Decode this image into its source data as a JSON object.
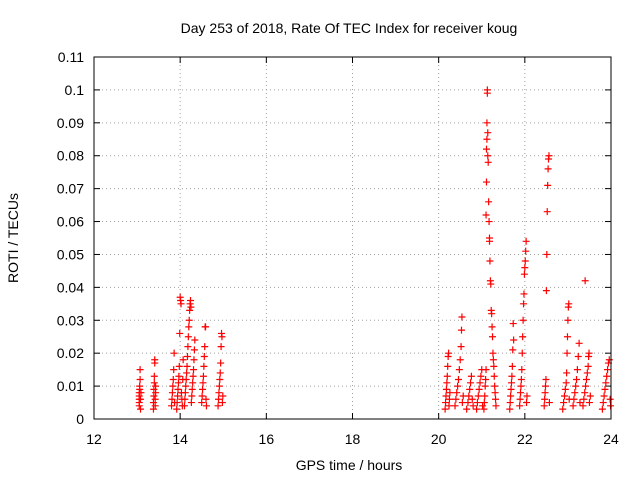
{
  "chart_data": {
    "type": "scatter",
    "title": "Day 253 of 2018, Rate Of TEC Index for receiver koug",
    "xlabel": "GPS time / hours",
    "ylabel": "ROTI / TECUs",
    "xlim": [
      12,
      24
    ],
    "ylim": [
      0,
      0.11
    ],
    "xticks": [
      12,
      14,
      16,
      18,
      20,
      22,
      24
    ],
    "xtick_labels": [
      "12",
      "14",
      "16",
      "18",
      "20",
      "22",
      "24"
    ],
    "yticks": [
      0,
      0.01,
      0.02,
      0.03,
      0.04,
      0.05,
      0.06,
      0.07,
      0.08,
      0.09,
      0.1,
      0.11
    ],
    "ytick_labels": [
      "0",
      "0.01",
      "0.02",
      "0.03",
      "0.04",
      "0.05",
      "0.06",
      "0.07",
      "0.08",
      "0.09",
      "0.1",
      "0.11"
    ],
    "grid": true,
    "marker": "+",
    "color": "#ff0000",
    "series": [
      {
        "name": "ROTI",
        "points": [
          [
            13.05,
            0.004
          ],
          [
            13.05,
            0.005
          ],
          [
            13.05,
            0.006
          ],
          [
            13.05,
            0.007
          ],
          [
            13.05,
            0.008
          ],
          [
            13.06,
            0.009
          ],
          [
            13.06,
            0.01
          ],
          [
            13.07,
            0.012
          ],
          [
            13.07,
            0.015
          ],
          [
            13.08,
            0.003
          ],
          [
            13.08,
            0.006
          ],
          [
            13.09,
            0.008
          ],
          [
            13.38,
            0.003
          ],
          [
            13.38,
            0.005
          ],
          [
            13.39,
            0.007
          ],
          [
            13.39,
            0.009
          ],
          [
            13.4,
            0.011
          ],
          [
            13.4,
            0.013
          ],
          [
            13.41,
            0.018
          ],
          [
            13.41,
            0.017
          ],
          [
            13.42,
            0.004
          ],
          [
            13.42,
            0.006
          ],
          [
            13.43,
            0.008
          ],
          [
            13.43,
            0.01
          ],
          [
            13.8,
            0.004
          ],
          [
            13.81,
            0.006
          ],
          [
            13.82,
            0.008
          ],
          [
            13.83,
            0.01
          ],
          [
            13.84,
            0.012
          ],
          [
            13.85,
            0.015
          ],
          [
            13.86,
            0.02
          ],
          [
            13.87,
            0.005
          ],
          [
            13.92,
            0.003
          ],
          [
            13.93,
            0.005
          ],
          [
            13.94,
            0.007
          ],
          [
            13.95,
            0.009
          ],
          [
            13.96,
            0.011
          ],
          [
            13.97,
            0.013
          ],
          [
            13.98,
            0.016
          ],
          [
            13.99,
            0.026
          ],
          [
            14.0,
            0.037
          ],
          [
            14.01,
            0.036
          ],
          [
            14.02,
            0.035
          ],
          [
            14.03,
            0.008
          ],
          [
            14.04,
            0.006
          ],
          [
            14.05,
            0.004
          ],
          [
            14.06,
            0.012
          ],
          [
            14.07,
            0.018
          ],
          [
            14.1,
            0.004
          ],
          [
            14.11,
            0.006
          ],
          [
            14.12,
            0.008
          ],
          [
            14.13,
            0.01
          ],
          [
            14.14,
            0.012
          ],
          [
            14.15,
            0.014
          ],
          [
            14.16,
            0.016
          ],
          [
            14.17,
            0.019
          ],
          [
            14.18,
            0.022
          ],
          [
            14.19,
            0.025
          ],
          [
            14.2,
            0.028
          ],
          [
            14.21,
            0.03
          ],
          [
            14.22,
            0.033
          ],
          [
            14.23,
            0.035
          ],
          [
            14.24,
            0.036
          ],
          [
            14.25,
            0.034
          ],
          [
            14.26,
            0.005
          ],
          [
            14.27,
            0.007
          ],
          [
            14.28,
            0.009
          ],
          [
            14.29,
            0.011
          ],
          [
            14.3,
            0.013
          ],
          [
            14.31,
            0.015
          ],
          [
            14.32,
            0.018
          ],
          [
            14.33,
            0.021
          ],
          [
            14.34,
            0.024
          ],
          [
            14.5,
            0.005
          ],
          [
            14.51,
            0.007
          ],
          [
            14.52,
            0.009
          ],
          [
            14.53,
            0.011
          ],
          [
            14.54,
            0.013
          ],
          [
            14.55,
            0.016
          ],
          [
            14.56,
            0.019
          ],
          [
            14.57,
            0.022
          ],
          [
            14.58,
            0.028
          ],
          [
            14.59,
            0.028
          ],
          [
            14.6,
            0.006
          ],
          [
            14.61,
            0.004
          ],
          [
            14.88,
            0.004
          ],
          [
            14.89,
            0.006
          ],
          [
            14.9,
            0.008
          ],
          [
            14.91,
            0.01
          ],
          [
            14.92,
            0.012
          ],
          [
            14.93,
            0.014
          ],
          [
            14.94,
            0.017
          ],
          [
            14.95,
            0.022
          ],
          [
            14.96,
            0.026
          ],
          [
            14.97,
            0.025
          ],
          [
            14.98,
            0.005
          ],
          [
            14.99,
            0.007
          ],
          [
            20.15,
            0.003
          ],
          [
            20.16,
            0.005
          ],
          [
            20.17,
            0.007
          ],
          [
            20.18,
            0.009
          ],
          [
            20.19,
            0.011
          ],
          [
            20.2,
            0.013
          ],
          [
            20.21,
            0.016
          ],
          [
            20.22,
            0.019
          ],
          [
            20.23,
            0.02
          ],
          [
            20.24,
            0.004
          ],
          [
            20.25,
            0.006
          ],
          [
            20.26,
            0.008
          ],
          [
            20.38,
            0.004
          ],
          [
            20.4,
            0.006
          ],
          [
            20.42,
            0.008
          ],
          [
            20.44,
            0.01
          ],
          [
            20.46,
            0.012
          ],
          [
            20.48,
            0.015
          ],
          [
            20.5,
            0.018
          ],
          [
            20.52,
            0.022
          ],
          [
            20.53,
            0.027
          ],
          [
            20.54,
            0.031
          ],
          [
            20.55,
            0.005
          ],
          [
            20.57,
            0.007
          ],
          [
            20.65,
            0.003
          ],
          [
            20.68,
            0.005
          ],
          [
            20.7,
            0.007
          ],
          [
            20.72,
            0.009
          ],
          [
            20.74,
            0.011
          ],
          [
            20.76,
            0.013
          ],
          [
            20.78,
            0.006
          ],
          [
            20.8,
            0.004
          ],
          [
            20.88,
            0.003
          ],
          [
            20.9,
            0.005
          ],
          [
            20.92,
            0.007
          ],
          [
            20.94,
            0.009
          ],
          [
            20.96,
            0.011
          ],
          [
            20.98,
            0.013
          ],
          [
            21.0,
            0.015
          ],
          [
            21.02,
            0.004
          ],
          [
            21.05,
            0.003
          ],
          [
            21.06,
            0.005
          ],
          [
            21.07,
            0.007
          ],
          [
            21.08,
            0.01
          ],
          [
            21.09,
            0.012
          ],
          [
            21.1,
            0.015
          ],
          [
            21.1,
            0.062
          ],
          [
            21.11,
            0.072
          ],
          [
            21.11,
            0.082
          ],
          [
            21.12,
            0.085
          ],
          [
            21.12,
            0.09
          ],
          [
            21.13,
            0.099
          ],
          [
            21.13,
            0.1
          ],
          [
            21.14,
            0.087
          ],
          [
            21.14,
            0.08
          ],
          [
            21.15,
            0.078
          ],
          [
            21.16,
            0.066
          ],
          [
            21.17,
            0.06
          ],
          [
            21.18,
            0.055
          ],
          [
            21.18,
            0.054
          ],
          [
            21.19,
            0.048
          ],
          [
            21.2,
            0.042
          ],
          [
            21.21,
            0.041
          ],
          [
            21.22,
            0.033
          ],
          [
            21.23,
            0.032
          ],
          [
            21.24,
            0.028
          ],
          [
            21.25,
            0.025
          ],
          [
            21.26,
            0.02
          ],
          [
            21.27,
            0.018
          ],
          [
            21.28,
            0.016
          ],
          [
            21.29,
            0.013
          ],
          [
            21.3,
            0.01
          ],
          [
            21.31,
            0.008
          ],
          [
            21.32,
            0.006
          ],
          [
            21.33,
            0.004
          ],
          [
            21.65,
            0.003
          ],
          [
            21.66,
            0.005
          ],
          [
            21.67,
            0.007
          ],
          [
            21.68,
            0.009
          ],
          [
            21.69,
            0.011
          ],
          [
            21.7,
            0.013
          ],
          [
            21.71,
            0.016
          ],
          [
            21.72,
            0.021
          ],
          [
            21.73,
            0.029
          ],
          [
            21.74,
            0.024
          ],
          [
            21.88,
            0.004
          ],
          [
            21.89,
            0.006
          ],
          [
            21.9,
            0.008
          ],
          [
            21.91,
            0.01
          ],
          [
            21.92,
            0.012
          ],
          [
            21.93,
            0.015
          ],
          [
            21.94,
            0.02
          ],
          [
            21.95,
            0.025
          ],
          [
            21.96,
            0.03
          ],
          [
            21.97,
            0.035
          ],
          [
            21.98,
            0.038
          ],
          [
            21.99,
            0.044
          ],
          [
            22.0,
            0.046
          ],
          [
            22.01,
            0.048
          ],
          [
            22.02,
            0.051
          ],
          [
            22.03,
            0.054
          ],
          [
            22.04,
            0.005
          ],
          [
            22.05,
            0.007
          ],
          [
            22.45,
            0.004
          ],
          [
            22.46,
            0.006
          ],
          [
            22.47,
            0.008
          ],
          [
            22.48,
            0.01
          ],
          [
            22.49,
            0.012
          ],
          [
            22.5,
            0.039
          ],
          [
            22.51,
            0.05
          ],
          [
            22.52,
            0.063
          ],
          [
            22.53,
            0.071
          ],
          [
            22.54,
            0.076
          ],
          [
            22.55,
            0.079
          ],
          [
            22.56,
            0.08
          ],
          [
            22.57,
            0.005
          ],
          [
            22.88,
            0.003
          ],
          [
            22.9,
            0.005
          ],
          [
            22.92,
            0.007
          ],
          [
            22.94,
            0.009
          ],
          [
            22.96,
            0.011
          ],
          [
            22.97,
            0.014
          ],
          [
            22.98,
            0.02
          ],
          [
            22.99,
            0.025
          ],
          [
            23.0,
            0.03
          ],
          [
            23.01,
            0.034
          ],
          [
            23.02,
            0.035
          ],
          [
            23.03,
            0.006
          ],
          [
            23.12,
            0.004
          ],
          [
            23.14,
            0.006
          ],
          [
            23.16,
            0.008
          ],
          [
            23.18,
            0.01
          ],
          [
            23.2,
            0.012
          ],
          [
            23.22,
            0.015
          ],
          [
            23.24,
            0.019
          ],
          [
            23.26,
            0.023
          ],
          [
            23.28,
            0.005
          ],
          [
            23.35,
            0.004
          ],
          [
            23.37,
            0.006
          ],
          [
            23.39,
            0.008
          ],
          [
            23.4,
            0.042
          ],
          [
            23.41,
            0.01
          ],
          [
            23.43,
            0.012
          ],
          [
            23.45,
            0.014
          ],
          [
            23.47,
            0.016
          ],
          [
            23.48,
            0.019
          ],
          [
            23.49,
            0.02
          ],
          [
            23.5,
            0.005
          ],
          [
            23.52,
            0.007
          ],
          [
            23.8,
            0.003
          ],
          [
            23.82,
            0.005
          ],
          [
            23.84,
            0.007
          ],
          [
            23.86,
            0.009
          ],
          [
            23.88,
            0.011
          ],
          [
            23.9,
            0.013
          ],
          [
            23.92,
            0.015
          ],
          [
            23.94,
            0.017
          ],
          [
            23.96,
            0.018
          ],
          [
            23.98,
            0.006
          ],
          [
            23.99,
            0.004
          ]
        ]
      }
    ]
  }
}
